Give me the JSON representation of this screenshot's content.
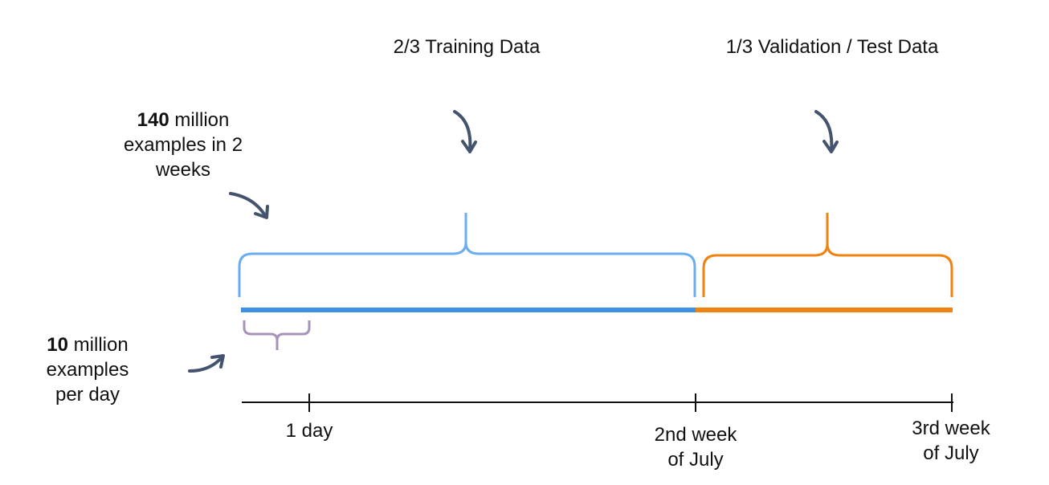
{
  "labels": {
    "training": "2/3 Training Data",
    "validation": "1/3 Validation / Test Data",
    "total_count": "140",
    "total_rest_line1": " million",
    "total_line2": "examples in 2",
    "total_line3": "weeks",
    "daily_count": "10",
    "daily_rest_line1": " million",
    "daily_line2": "examples",
    "daily_line3": "per day"
  },
  "axis": {
    "tick_1": "1 day",
    "tick_2_line1": "2nd week",
    "tick_2_line2": "of July",
    "tick_3_line1": "3rd week",
    "tick_3_line2": "of July"
  },
  "colors": {
    "training": "#3d8fe8",
    "training_brace": "#6aaef0",
    "validation": "#f0820f",
    "day_brace": "#a893b8",
    "arrow": "#44546e",
    "axis": "#111111"
  },
  "split": {
    "training_fraction": 0.6667,
    "validation_fraction": 0.3333
  }
}
